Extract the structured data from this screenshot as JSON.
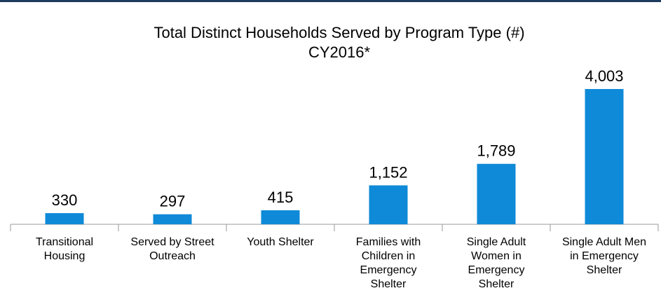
{
  "chart_data": {
    "type": "bar",
    "title": "Total Distinct Households Served by Program Type (#)",
    "subtitle": "CY2016*",
    "categories": [
      "Transitional Housing",
      "Served by Street Outreach",
      "Youth Shelter",
      "Families with Children in Emergency Shelter",
      "Single Adult Women in Emergency Shelter",
      "Single Adult Men in Emergency Shelter"
    ],
    "values": [
      330,
      297,
      415,
      1152,
      1789,
      4003
    ],
    "value_labels": [
      "330",
      "297",
      "415",
      "1,152",
      "1,789",
      "4,003"
    ],
    "color": "#0f8ad8"
  }
}
